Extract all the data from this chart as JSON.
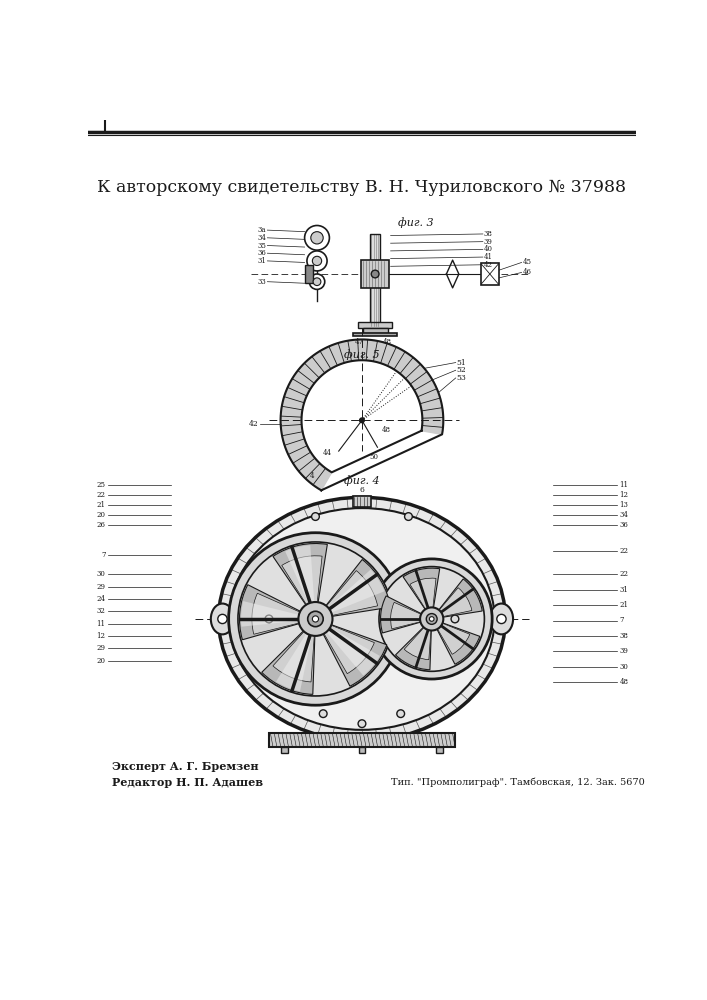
{
  "title_line": "К авторскому свидетельству В. Н. Чуриловского № 37988",
  "fig3_label": "фиг. 3",
  "fig5_label": "фиг. 5",
  "fig4_label": "фиг. 4",
  "expert_line": "Эксперт А. Г. Бремзен",
  "editor_line": "Редактор Н. П. Адашев",
  "print_line": "Тип. \"Промполиграф\". Тамбовская, 12. Зак. 5670",
  "bg_color": "#ffffff",
  "line_color": "#1a1a1a"
}
